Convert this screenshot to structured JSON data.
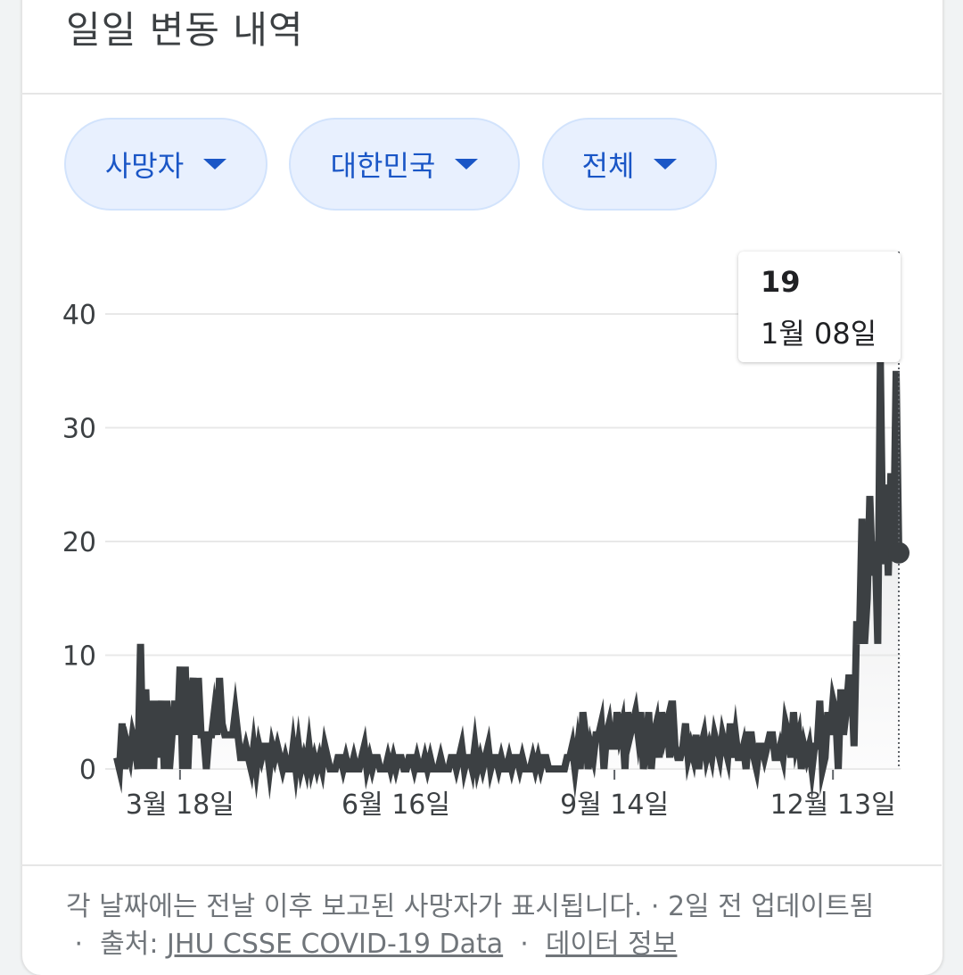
{
  "title": "일일 변동 내역",
  "filters": [
    {
      "label": "사망자"
    },
    {
      "label": "대한민국"
    },
    {
      "label": "전체"
    }
  ],
  "tooltip": {
    "value": "19",
    "date": "1월 08일"
  },
  "footer": {
    "note": "각 날짜에는 전날 이후 보고된 사망자가 표시됩니다. · 2일 전 업데이트됨",
    "sep1": "·",
    "source_prefix": "출처:",
    "source_link": "JHU CSSE COVID-19 Data",
    "sep2": "·",
    "info_link": "데이터 정보"
  },
  "colors": {
    "line": "#3c4043",
    "grid": "#e8e8e8",
    "chip_bg": "#e8f0fe",
    "chip_text": "#1a56c6"
  },
  "chart_data": {
    "type": "area",
    "ylim": [
      0,
      40
    ],
    "y_ticks": [
      0,
      10,
      20,
      30,
      40
    ],
    "x_ticks": [
      "3월 18일",
      "6월 16일",
      "9월 14일",
      "12월 13일"
    ],
    "grid": true,
    "highlight": {
      "value": 19,
      "date": "1월 08일"
    },
    "values": [
      1,
      0,
      4,
      0,
      2,
      1,
      3,
      2,
      0,
      11,
      0,
      7,
      0,
      6,
      0,
      6,
      1,
      6,
      0,
      6,
      0,
      3,
      6,
      3,
      9,
      0,
      9,
      0,
      6,
      8,
      3,
      8,
      3,
      3,
      0,
      3,
      3,
      5,
      3,
      8,
      4,
      3,
      3,
      3,
      3,
      5,
      3,
      1,
      1,
      2,
      1,
      0,
      2,
      0,
      2,
      1,
      2,
      2,
      0,
      2,
      1,
      2,
      1,
      0,
      1,
      0,
      0,
      2,
      0,
      2,
      0,
      1,
      0,
      2,
      0,
      1,
      0,
      1,
      0,
      2,
      1,
      0,
      0,
      0,
      1,
      1,
      0,
      1,
      0,
      0,
      1,
      0,
      0,
      1,
      2,
      0,
      1,
      0,
      1,
      1,
      0,
      0,
      0,
      1,
      0,
      1,
      0,
      1,
      1,
      0,
      0,
      1,
      1,
      0,
      1,
      0,
      0,
      1,
      0,
      1,
      0,
      0,
      0,
      1,
      0,
      0,
      0,
      1,
      1,
      0,
      1,
      2,
      0,
      1,
      1,
      0,
      2,
      0,
      1,
      0,
      1,
      2,
      0,
      1,
      1,
      0,
      1,
      0,
      0,
      1,
      0,
      1,
      1,
      0,
      1,
      0,
      0,
      0,
      1,
      0,
      1,
      0,
      1,
      1,
      0,
      0,
      0,
      0,
      0,
      0,
      0,
      1,
      1,
      2,
      0,
      2,
      0,
      5,
      3,
      0,
      2,
      1,
      3,
      3,
      4,
      0,
      3,
      4,
      2,
      2,
      5,
      3,
      4,
      0,
      5,
      3,
      4,
      5,
      3,
      5,
      0,
      2,
      5,
      0,
      3,
      4,
      1,
      5,
      3,
      4,
      1,
      6,
      2,
      1,
      1,
      2,
      4,
      1,
      2,
      1,
      3,
      0,
      2,
      3,
      1,
      2,
      1,
      3,
      2,
      1,
      3,
      2,
      1,
      4,
      1,
      3,
      1,
      1,
      2,
      0,
      3,
      3,
      1,
      0,
      2,
      2,
      1,
      2,
      3,
      3,
      1,
      1,
      2,
      1,
      4,
      3,
      1,
      5,
      2,
      3,
      0,
      2,
      1,
      2,
      0,
      2,
      2,
      6,
      0,
      1,
      5,
      3,
      6,
      5,
      0,
      7,
      3,
      5,
      8,
      8,
      2,
      13,
      11,
      22,
      11,
      15,
      24,
      17,
      20,
      11,
      36,
      18,
      25,
      17,
      26,
      19,
      35,
      19
    ]
  }
}
